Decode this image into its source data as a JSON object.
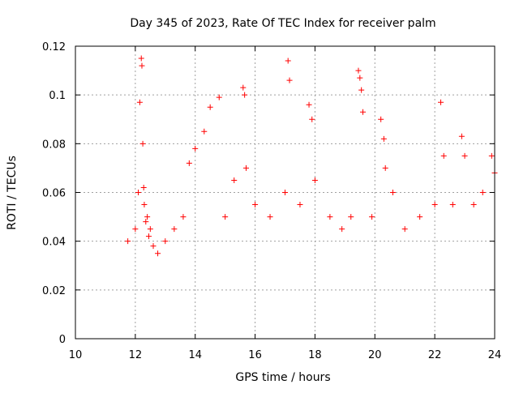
{
  "chart_data": {
    "type": "scatter",
    "title": "Day 345 of 2023, Rate Of TEC Index for receiver palm",
    "xlabel": "GPS time / hours",
    "ylabel": "ROTI / TECUs",
    "xlim": [
      10,
      24
    ],
    "ylim": [
      0,
      0.12
    ],
    "x_ticks": [
      "10",
      "12",
      "14",
      "16",
      "18",
      "20",
      "22",
      "24"
    ],
    "y_ticks": [
      "0",
      "0.02",
      "0.04",
      "0.06",
      "0.08",
      "0.1",
      "0.12"
    ],
    "grid": true,
    "legend": "none",
    "marker": "plus",
    "color": "#ff0000",
    "series": [
      {
        "x": [
          11.75,
          12.0,
          12.1,
          12.15,
          12.2,
          12.22,
          12.25,
          12.28,
          12.3,
          12.35,
          12.4,
          12.45,
          12.5,
          12.6,
          12.75,
          13.0,
          13.3,
          13.6,
          13.8,
          14.0,
          14.3,
          14.5,
          14.8,
          15.0,
          15.3,
          15.6,
          15.65,
          15.7,
          16.0,
          16.5,
          17.0,
          17.1,
          17.15,
          17.5,
          17.8,
          17.9,
          18.0,
          18.5,
          18.9,
          19.2,
          19.45,
          19.5,
          19.55,
          19.6,
          19.9,
          20.2,
          20.3,
          20.35,
          20.6,
          21.0,
          21.5,
          22.0,
          22.2,
          22.3,
          22.6,
          22.9,
          23.0,
          23.3,
          23.6,
          23.9,
          24.0
        ],
        "y": [
          0.04,
          0.045,
          0.06,
          0.097,
          0.115,
          0.112,
          0.08,
          0.062,
          0.055,
          0.048,
          0.05,
          0.042,
          0.045,
          0.038,
          0.035,
          0.04,
          0.045,
          0.05,
          0.072,
          0.078,
          0.085,
          0.095,
          0.099,
          0.05,
          0.065,
          0.103,
          0.1,
          0.07,
          0.055,
          0.05,
          0.06,
          0.114,
          0.106,
          0.055,
          0.096,
          0.09,
          0.065,
          0.05,
          0.045,
          0.05,
          0.11,
          0.107,
          0.102,
          0.093,
          0.05,
          0.09,
          0.082,
          0.07,
          0.06,
          0.045,
          0.05,
          0.055,
          0.097,
          0.075,
          0.055,
          0.083,
          0.075,
          0.055,
          0.06,
          0.075,
          0.068
        ]
      }
    ]
  }
}
